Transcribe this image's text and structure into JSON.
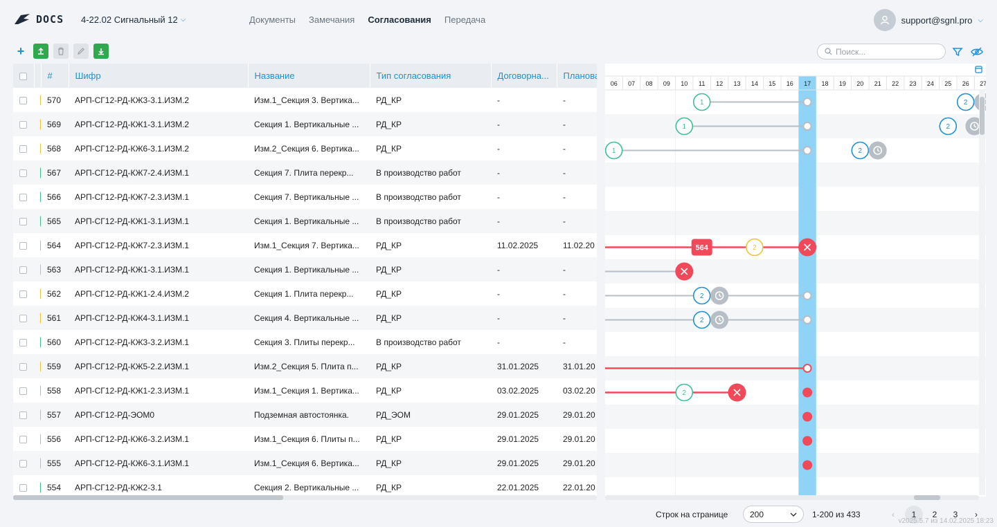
{
  "app": {
    "logo_text": "DOCS",
    "project": "4-22.02 Сигнальный 12"
  },
  "nav": {
    "items": [
      "Документы",
      "Замечания",
      "Согласования",
      "Передача"
    ],
    "active": "Согласования"
  },
  "user": {
    "email": "support@sgnl.pro"
  },
  "toolbar": {
    "add_icon": "+",
    "upload_icon": "upload-icon",
    "delete_icon": "trash-icon",
    "edit_icon": "pencil-icon",
    "download_icon": "download-icon"
  },
  "search": {
    "placeholder": "Поиск..."
  },
  "table": {
    "columns": [
      "#",
      "Шифр",
      "Название",
      "Тип согласования",
      "Договорна...",
      "Планова"
    ],
    "rows": [
      {
        "num": "570",
        "code": "АРП-СГ12-РД-КЖ3-3.1.ИЗМ.2",
        "name": "Изм.1_Секция 3. Вертика...",
        "type": "РД_КР",
        "date1": "-",
        "date2": "-",
        "status": "#f0c23b"
      },
      {
        "num": "569",
        "code": "АРП-СГ12-РД-КЖ1-3.1.ИЗМ.2",
        "name": "Секция 1. Вертикальные ...",
        "type": "РД_КР",
        "date1": "-",
        "date2": "-",
        "status": "#f0c23b"
      },
      {
        "num": "568",
        "code": "АРП-СГ12-РД-КЖ6-3.1.ИЗМ.2",
        "name": "Изм.2_Секция 6. Вертика...",
        "type": "РД_КР",
        "date1": "-",
        "date2": "-",
        "status": "#f0c23b"
      },
      {
        "num": "567",
        "code": "АРП-СГ12-РД-КЖ7-2.4.ИЗМ.1",
        "name": "Секция 7. Плита перекр...",
        "type": "В производство работ",
        "date1": "-",
        "date2": "-",
        "status": "#3cbf86"
      },
      {
        "num": "566",
        "code": "АРП-СГ12-РД-КЖ7-2.3.ИЗМ.1",
        "name": "Секция 7. Вертикальные ...",
        "type": "В производство работ",
        "date1": "-",
        "date2": "-",
        "status": "#3cbf86"
      },
      {
        "num": "565",
        "code": "АРП-СГ12-РД-КЖ1-3.1.ИЗМ.1",
        "name": "Секция 1. Вертикальные ...",
        "type": "В производство работ",
        "date1": "-",
        "date2": "-",
        "status": "#3cbf86"
      },
      {
        "num": "564",
        "code": "АРП-СГ12-РД-КЖ7-2.3.ИЗМ.1",
        "name": "Изм.1_Секция 7. Вертика...",
        "type": "РД_КР",
        "date1": "11.02.2025",
        "date2": "11.02.20",
        "status": "#b8bec5"
      },
      {
        "num": "563",
        "code": "АРП-СГ12-РД-КЖ1-3.1.ИЗМ.1",
        "name": "Секция 1. Вертикальные ...",
        "type": "РД_КР",
        "date1": "-",
        "date2": "-",
        "status": "#b8bec5"
      },
      {
        "num": "562",
        "code": "АРП-СГ12-РД-КЖ1-2.4.ИЗМ.2",
        "name": "Секция 1. Плита перекр...",
        "type": "РД_КР",
        "date1": "-",
        "date2": "-",
        "status": "#f0c23b"
      },
      {
        "num": "561",
        "code": "АРП-СГ12-РД-КЖ4-3.1.ИЗМ.1",
        "name": "Секция 4. Вертикальные ...",
        "type": "РД_КР",
        "date1": "-",
        "date2": "-",
        "status": "#f0c23b"
      },
      {
        "num": "560",
        "code": "АРП-СГ12-РД-КЖ3-3.2.ИЗМ.1",
        "name": "Секция 3. Плиты перекр...",
        "type": "В производство работ",
        "date1": "-",
        "date2": "-",
        "status": "#3cbf86"
      },
      {
        "num": "559",
        "code": "АРП-СГ12-РД-КЖ5-2.2.ИЗМ.1",
        "name": "Изм.2_Секция 5. Плита п...",
        "type": "РД_КР",
        "date1": "31.01.2025",
        "date2": "31.01.20",
        "status": "#f0c23b"
      },
      {
        "num": "558",
        "code": "АРП-СГ12-РД-КЖ1-2.3.ИЗМ.1",
        "name": "Изм.1_Секция 1. Вертика...",
        "type": "РД_КР",
        "date1": "03.02.2025",
        "date2": "03.02.20",
        "status": "#b8bec5"
      },
      {
        "num": "557",
        "code": "АРП-СГ12-РД-ЭОМ0",
        "name": "Подземная автостоянка.",
        "type": "РД_ЭОМ",
        "date1": "29.01.2025",
        "date2": "29.01.20",
        "status": "#b8bec5"
      },
      {
        "num": "556",
        "code": "АРП-СГ12-РД-КЖ6-3.2.ИЗМ.1",
        "name": "Изм.1_Секция 6. Плиты п...",
        "type": "РД_КР",
        "date1": "29.01.2025",
        "date2": "29.01.20",
        "status": "#b8bec5"
      },
      {
        "num": "555",
        "code": "АРП-СГ12-РД-КЖ6-3.1.ИЗМ.1",
        "name": "Изм.1_Секция 6. Вертика...",
        "type": "РД_КР",
        "date1": "29.01.2025",
        "date2": "29.01.20",
        "status": "#b8bec5"
      },
      {
        "num": "554",
        "code": "АРП-СГ12-РД-КЖ2-3.1",
        "name": "Секция 2. Вертикальные ...",
        "type": "РД_КР",
        "date1": "22.01.2025",
        "date2": "22.01.20",
        "status": "#3cbf86"
      }
    ]
  },
  "gantt": {
    "days": [
      "06",
      "07",
      "08",
      "09",
      "10",
      "11",
      "12",
      "13",
      "14",
      "15",
      "16",
      "17",
      "18",
      "19",
      "20",
      "21",
      "22",
      "23",
      "24",
      "25",
      "26",
      "27"
    ],
    "today": "17",
    "colors": {
      "gray": "#b8bec5",
      "red": "#f04a5a",
      "blue": "#1e90d6",
      "teal": "#3cbf9a",
      "yellow": "#f0c23b",
      "today": "#8fd3f7"
    },
    "marker_labels": {
      "n1": "1",
      "n2": "2",
      "badge": "564"
    },
    "rows": [
      {
        "line": {
          "from": "11",
          "to": "17",
          "color": "gray"
        },
        "markers": [
          {
            "day": "11",
            "label": "n1",
            "kind": "circle",
            "color": "teal"
          },
          {
            "day": "17",
            "kind": "dot-open",
            "color": "gray"
          },
          {
            "day": "26",
            "label": "n2",
            "kind": "circle",
            "color": "blue"
          },
          {
            "day": "27",
            "kind": "clock",
            "color": "gray"
          }
        ]
      },
      {
        "line": {
          "from": "10",
          "to": "17",
          "color": "gray"
        },
        "markers": [
          {
            "day": "10",
            "label": "n1",
            "kind": "circle",
            "color": "teal"
          },
          {
            "day": "17",
            "kind": "dot-open",
            "color": "gray"
          },
          {
            "day": "25",
            "label": "n2",
            "kind": "circle",
            "color": "blue"
          },
          {
            "day": "26.5",
            "kind": "clock",
            "color": "gray"
          }
        ]
      },
      {
        "line": {
          "from": "06",
          "to": "17",
          "color": "gray"
        },
        "markers": [
          {
            "day": "06",
            "label": "n1",
            "kind": "circle",
            "color": "teal"
          },
          {
            "day": "17",
            "kind": "dot-open",
            "color": "gray"
          },
          {
            "day": "20",
            "label": "n2",
            "kind": "circle",
            "color": "blue"
          },
          {
            "day": "21",
            "kind": "clock",
            "color": "gray"
          }
        ]
      },
      {
        "markers": []
      },
      {
        "markers": []
      },
      {
        "markers": []
      },
      {
        "line": {
          "from": "start",
          "to": "17",
          "color": "red"
        },
        "markers": [
          {
            "day": "11",
            "label": "badge",
            "kind": "badge",
            "color": "red"
          },
          {
            "day": "14",
            "label": "n2",
            "kind": "circle",
            "color": "yellow"
          },
          {
            "day": "17",
            "kind": "cross",
            "color": "red"
          }
        ]
      },
      {
        "line": {
          "from": "start",
          "to": "10",
          "color": "gray"
        },
        "markers": [
          {
            "day": "10",
            "kind": "cross",
            "color": "red"
          }
        ]
      },
      {
        "line": {
          "from": "start",
          "to": "17",
          "color": "gray"
        },
        "markers": [
          {
            "day": "11",
            "label": "n2",
            "kind": "circle",
            "color": "blue"
          },
          {
            "day": "12",
            "kind": "clock",
            "color": "gray"
          },
          {
            "day": "17",
            "kind": "dot-open",
            "color": "gray"
          }
        ]
      },
      {
        "line": {
          "from": "start",
          "to": "17",
          "color": "gray"
        },
        "markers": [
          {
            "day": "11",
            "label": "n2",
            "kind": "circle",
            "color": "blue"
          },
          {
            "day": "12",
            "kind": "clock",
            "color": "gray"
          },
          {
            "day": "17",
            "kind": "dot-open",
            "color": "gray"
          }
        ]
      },
      {
        "markers": []
      },
      {
        "line": {
          "from": "start",
          "to": "17",
          "color": "red"
        },
        "markers": [
          {
            "day": "17",
            "kind": "dot-open",
            "color": "red"
          }
        ]
      },
      {
        "line": {
          "from": "start",
          "to": "13",
          "color": "red"
        },
        "markers": [
          {
            "day": "10",
            "label": "n2",
            "kind": "circle",
            "color": "teal"
          },
          {
            "day": "13",
            "kind": "cross",
            "color": "red"
          },
          {
            "day": "17",
            "kind": "dot",
            "color": "red"
          }
        ]
      },
      {
        "markers": [
          {
            "day": "17",
            "kind": "dot",
            "color": "red"
          }
        ]
      },
      {
        "markers": [
          {
            "day": "17",
            "kind": "dot",
            "color": "red"
          }
        ]
      },
      {
        "markers": [
          {
            "day": "17",
            "kind": "dot",
            "color": "red"
          }
        ]
      },
      {
        "markers": []
      }
    ]
  },
  "footer": {
    "rows_per_page_label": "Строк на странице",
    "rows_per_page_value": "200",
    "range": "1-200 из 433",
    "pages": [
      "1",
      "2",
      "3"
    ],
    "current_page": "1",
    "version": "v2025.5.7 из 14.02.2025 18:23"
  }
}
